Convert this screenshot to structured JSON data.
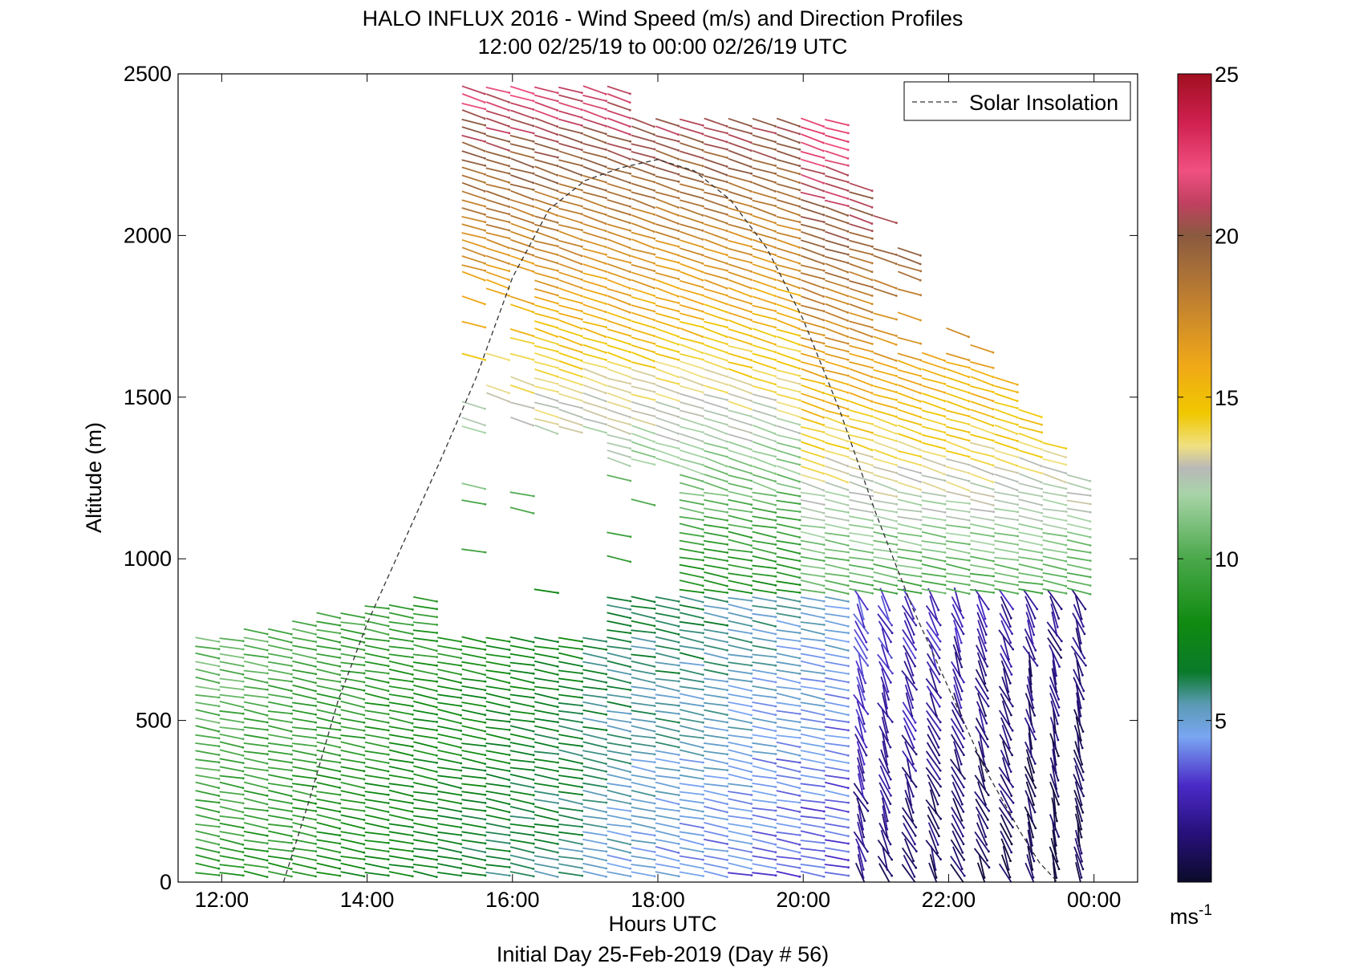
{
  "chart_data": {
    "type": "quiver",
    "title": "HALO INFLUX 2016 - Wind Speed (m/s) and Direction Profiles",
    "subtitle": "12:00 02/25/19 to 00:00 02/26/19  UTC",
    "xlabel": "Hours UTC",
    "footer": "Initial Day 25-Feb-2019 (Day # 56)",
    "ylabel": "Altitude (m)",
    "xlim": [
      11.4,
      24.6
    ],
    "ylim": [
      0,
      2500
    ],
    "x_ticks": [
      {
        "value": 12,
        "label": "12:00"
      },
      {
        "value": 14,
        "label": "14:00"
      },
      {
        "value": 16,
        "label": "16:00"
      },
      {
        "value": 18,
        "label": "18:00"
      },
      {
        "value": 20,
        "label": "20:00"
      },
      {
        "value": 22,
        "label": "22:00"
      },
      {
        "value": 24,
        "label": "00:00"
      }
    ],
    "y_ticks": [
      {
        "value": 0,
        "label": "0"
      },
      {
        "value": 500,
        "label": "500"
      },
      {
        "value": 1000,
        "label": "1000"
      },
      {
        "value": 1500,
        "label": "1500"
      },
      {
        "value": 2000,
        "label": "2000"
      },
      {
        "value": 2500,
        "label": "2500"
      }
    ],
    "legend": {
      "label": "Solar Insolation",
      "position": "top-right",
      "style": "dashed black"
    },
    "colorbar": {
      "range": [
        0,
        25
      ],
      "ticks": [
        {
          "value": 5,
          "label": "5"
        },
        {
          "value": 10,
          "label": "10"
        },
        {
          "value": 15,
          "label": "15"
        },
        {
          "value": 20,
          "label": "20"
        },
        {
          "value": 25,
          "label": "25"
        }
      ],
      "unit_base": "ms",
      "unit_exp": "-1",
      "stops": [
        {
          "v": 0,
          "color": "#0b0b2a"
        },
        {
          "v": 1.5,
          "color": "#27107a"
        },
        {
          "v": 3,
          "color": "#4a2ac8"
        },
        {
          "v": 4.5,
          "color": "#7aa6f2"
        },
        {
          "v": 5.5,
          "color": "#5a9ab4"
        },
        {
          "v": 6.5,
          "color": "#0a7a2a"
        },
        {
          "v": 8,
          "color": "#108a10"
        },
        {
          "v": 10,
          "color": "#4aa84a"
        },
        {
          "v": 12,
          "color": "#a8d4a8"
        },
        {
          "v": 12.8,
          "color": "#b8b8b8"
        },
        {
          "v": 13.5,
          "color": "#f0e080"
        },
        {
          "v": 14.5,
          "color": "#f0c800"
        },
        {
          "v": 16,
          "color": "#f0a818"
        },
        {
          "v": 18,
          "color": "#c08030"
        },
        {
          "v": 20,
          "color": "#8a5a40"
        },
        {
          "v": 21,
          "color": "#c04060"
        },
        {
          "v": 22,
          "color": "#f05080"
        },
        {
          "v": 23.5,
          "color": "#d02050"
        },
        {
          "v": 25,
          "color": "#a01020"
        }
      ]
    },
    "series": [
      {
        "name": "Solar Insolation",
        "type": "dashed-line",
        "x": [
          12.85,
          13.2,
          13.6,
          14.0,
          14.5,
          15.0,
          15.5,
          16.0,
          16.5,
          17.0,
          17.5,
          18.0,
          18.5,
          19.0,
          19.5,
          20.0,
          20.5,
          21.0,
          21.5,
          22.0,
          22.5,
          23.0,
          23.25,
          23.5
        ],
        "y": [
          0,
          250,
          560,
          800,
          1050,
          1300,
          1560,
          1870,
          2080,
          2170,
          2210,
          2235,
          2200,
          2110,
          1960,
          1740,
          1460,
          1140,
          850,
          600,
          350,
          150,
          60,
          0
        ]
      },
      {
        "name": "Wind barbs",
        "type": "quiver",
        "time_range": [
          11.8,
          23.8
        ],
        "time_step": 0.333,
        "altitude_range": [
          25,
          2500
        ],
        "description_units": "speed in m/s, altitude in m, time in hours UTC"
      }
    ]
  }
}
